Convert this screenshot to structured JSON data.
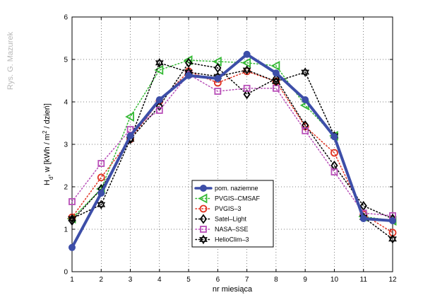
{
  "credit": "Rys. G. Mazurek",
  "chart_data": {
    "type": "line",
    "xlabel": "nr miesiąca",
    "ylabel_parts": {
      "h": "H",
      "d_sub": "d",
      "comma": ", w [kWh / m",
      "sup2": "2",
      "tail": " / dzień]"
    },
    "x": [
      1,
      2,
      3,
      4,
      5,
      6,
      7,
      8,
      9,
      10,
      11,
      12
    ],
    "xlim": [
      1,
      12
    ],
    "ylim": [
      0,
      6
    ],
    "x_ticks": [
      "1",
      "2",
      "3",
      "4",
      "5",
      "6",
      "7",
      "8",
      "9",
      "10",
      "11",
      "12"
    ],
    "y_ticks": [
      "0",
      "1",
      "2",
      "3",
      "4",
      "5",
      "6"
    ],
    "grid": true,
    "legend_placement": "center-bottom",
    "series": [
      {
        "name": "pom. naziemne",
        "color": "#3d4ea8",
        "style": "solid-thick",
        "marker": "filled-circle",
        "values": [
          0.57,
          1.85,
          3.2,
          4.05,
          4.62,
          4.55,
          5.12,
          4.68,
          4.05,
          3.18,
          1.25,
          1.2
        ]
      },
      {
        "name": "PVGIS–CMSAF",
        "color": "#33b833",
        "style": "dotted",
        "marker": "triangle-left",
        "values": [
          1.25,
          1.95,
          3.65,
          4.75,
          4.98,
          4.95,
          4.92,
          4.85,
          3.92,
          3.2,
          1.3,
          1.2
        ]
      },
      {
        "name": "PVGIS–3",
        "color": "#e03322",
        "style": "dotted",
        "marker": "circle",
        "values": [
          1.28,
          2.22,
          3.12,
          4.02,
          4.72,
          4.45,
          4.72,
          4.48,
          3.42,
          2.8,
          1.35,
          0.92
        ]
      },
      {
        "name": "Satel–Light",
        "color": "#000000",
        "style": "dotted",
        "marker": "diamond",
        "values": [
          1.2,
          1.95,
          3.12,
          3.9,
          4.92,
          4.8,
          4.18,
          4.55,
          3.45,
          2.5,
          1.55,
          1.25
        ]
      },
      {
        "name": "NASA–SSE",
        "color": "#b84fb8",
        "style": "dotted",
        "marker": "square",
        "values": [
          1.65,
          2.55,
          3.35,
          3.8,
          4.65,
          4.25,
          4.32,
          4.32,
          3.32,
          2.35,
          1.38,
          1.32
        ]
      },
      {
        "name": "HelioClim–3",
        "color": "#000000",
        "style": "dotted",
        "marker": "hexagram",
        "values": [
          1.25,
          1.58,
          3.12,
          4.92,
          4.7,
          4.6,
          4.75,
          4.48,
          4.7,
          3.2,
          1.28,
          0.77
        ]
      }
    ]
  }
}
